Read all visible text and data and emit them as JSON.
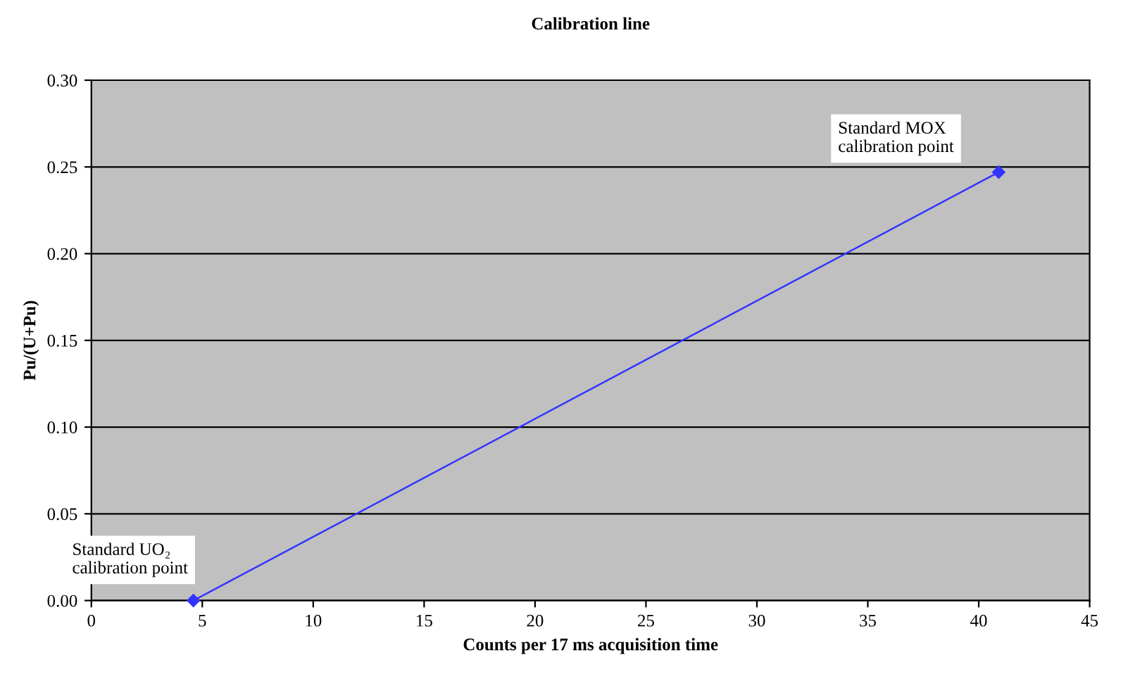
{
  "chart_data": {
    "type": "line",
    "title": "Calibration line",
    "xlabel": "Counts per 17 ms acquisition time",
    "ylabel": "Pu/(U+Pu)",
    "x": [
      4.6,
      40.9
    ],
    "series": [
      {
        "color": "#3333ff",
        "values": [
          0.0,
          0.247
        ]
      }
    ],
    "xlim": [
      0,
      45
    ],
    "xticks": [
      0,
      5,
      10,
      15,
      20,
      25,
      30,
      35,
      40,
      45
    ],
    "ylim": [
      0,
      0.3
    ],
    "yticks": [
      {
        "value": 0,
        "label": "0.00"
      },
      {
        "value": 0.05,
        "label": "0.05"
      },
      {
        "value": 0.1,
        "label": "0.10"
      },
      {
        "value": 0.15,
        "label": "0.15"
      },
      {
        "value": 0.2,
        "label": "0.20"
      },
      {
        "value": 0.25,
        "label": "0.25"
      },
      {
        "value": 0.3,
        "label": "0.30"
      }
    ],
    "grid": "y",
    "marker": "diamond",
    "line_style": "solid",
    "legend": false,
    "annotations": [
      {
        "text": "Standard UO₂\ncalibration point",
        "x": 4.6,
        "y": 0.0
      },
      "Standard MOX\ncalibration point"
    ]
  }
}
